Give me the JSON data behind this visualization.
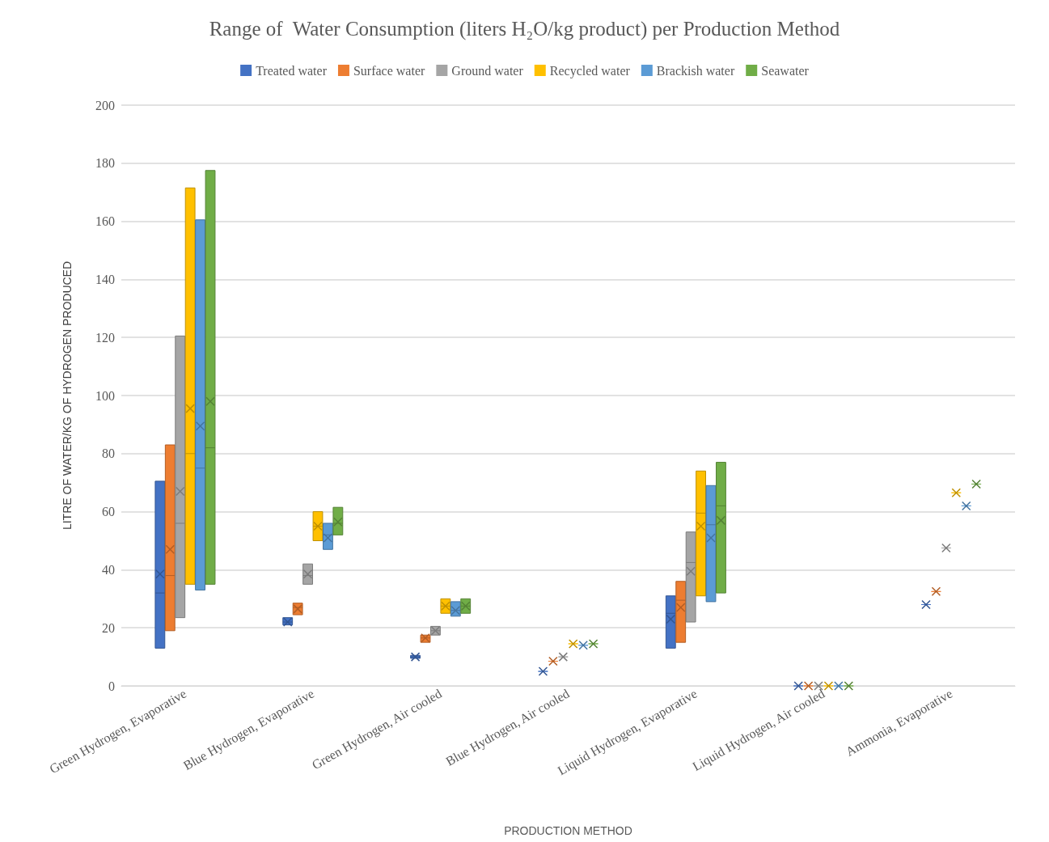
{
  "chart_data": {
    "type": "box",
    "title": "Range of  Water Consumption (liters H₂O/kg product) per Production Method",
    "xlabel": "PRODUCTION METHOD",
    "ylabel": "LITRE OF WATER/KG OF HYDROGEN PRODUCED",
    "categories": [
      "Green Hydrogen, Evaporative",
      "Blue Hydrogen, Evaporative",
      "Green Hydrogen, Air cooled",
      "Blue Hydrogen, Air cooled",
      "Liquid Hydrogen, Evaporative",
      "Liquid Hydrogen, Air cooled",
      "Ammonia, Evaporative"
    ],
    "series": [
      {
        "name": "Treated water",
        "color": "#4472c4",
        "boxes": [
          {
            "low": 13,
            "q1": 13,
            "median": 32,
            "q3": 70.5,
            "high": 70.5,
            "mean": 38.5
          },
          {
            "low": 21,
            "q1": 21,
            "median": 22,
            "q3": 23.5,
            "high": 23.5,
            "mean": 22
          },
          {
            "low": 9.5,
            "q1": 9.5,
            "median": 10,
            "q3": 10.5,
            "high": 10.5,
            "mean": 10
          },
          {
            "low": 5,
            "q1": 5,
            "median": 5,
            "q3": 5,
            "high": 5,
            "mean": 5
          },
          {
            "low": 13,
            "q1": 13,
            "median": 25,
            "q3": 31,
            "high": 31,
            "mean": 23
          },
          {
            "low": 0,
            "q1": 0,
            "median": 0,
            "q3": 0,
            "high": 0,
            "mean": 0
          },
          {
            "low": 28,
            "q1": 28,
            "median": 28,
            "q3": 28,
            "high": 28,
            "mean": 28
          }
        ]
      },
      {
        "name": "Surface water",
        "color": "#ed7d31",
        "boxes": [
          {
            "low": 19,
            "q1": 19,
            "median": 38,
            "q3": 83,
            "high": 83,
            "mean": 47
          },
          {
            "low": 24.5,
            "q1": 24.5,
            "median": 27,
            "q3": 28.5,
            "high": 28.5,
            "mean": 26.5
          },
          {
            "low": 15,
            "q1": 15,
            "median": 16.5,
            "q3": 17.5,
            "high": 17.5,
            "mean": 16.5
          },
          {
            "low": 8.5,
            "q1": 8.5,
            "median": 8.5,
            "q3": 8.5,
            "high": 8.5,
            "mean": 8.5
          },
          {
            "low": 15,
            "q1": 15,
            "median": 29.5,
            "q3": 36,
            "high": 36,
            "mean": 27
          },
          {
            "low": 0,
            "q1": 0,
            "median": 0,
            "q3": 0,
            "high": 0,
            "mean": 0
          },
          {
            "low": 32.5,
            "q1": 32.5,
            "median": 32.5,
            "q3": 32.5,
            "high": 32.5,
            "mean": 32.5
          }
        ]
      },
      {
        "name": "Ground water",
        "color": "#a5a5a5",
        "boxes": [
          {
            "low": 23.5,
            "q1": 23.5,
            "median": 56,
            "q3": 120.5,
            "high": 120.5,
            "mean": 67
          },
          {
            "low": 35,
            "q1": 35,
            "median": 38,
            "q3": 42,
            "high": 42,
            "mean": 38.5
          },
          {
            "low": 17.5,
            "q1": 17.5,
            "median": 19,
            "q3": 20.5,
            "high": 20.5,
            "mean": 19
          },
          {
            "low": 10,
            "q1": 10,
            "median": 10,
            "q3": 10,
            "high": 10,
            "mean": 10
          },
          {
            "low": 22,
            "q1": 22,
            "median": 42.5,
            "q3": 53,
            "high": 53,
            "mean": 39.5
          },
          {
            "low": 0,
            "q1": 0,
            "median": 0,
            "q3": 0,
            "high": 0,
            "mean": 0
          },
          {
            "low": 47.5,
            "q1": 47.5,
            "median": 47.5,
            "q3": 47.5,
            "high": 47.5,
            "mean": 47.5
          }
        ]
      },
      {
        "name": "Recycled water",
        "color": "#ffc000",
        "boxes": [
          {
            "low": 35,
            "q1": 35,
            "median": 80,
            "q3": 171.5,
            "high": 171.5,
            "mean": 95.5
          },
          {
            "low": 50,
            "q1": 50,
            "median": 55,
            "q3": 60,
            "high": 60,
            "mean": 55
          },
          {
            "low": 25,
            "q1": 25,
            "median": 27.5,
            "q3": 30,
            "high": 30,
            "mean": 27.5
          },
          {
            "low": 14.5,
            "q1": 14.5,
            "median": 14.5,
            "q3": 14.5,
            "high": 14.5,
            "mean": 14.5
          },
          {
            "low": 31,
            "q1": 31,
            "median": 59.5,
            "q3": 74,
            "high": 74,
            "mean": 55
          },
          {
            "low": 0,
            "q1": 0,
            "median": 0,
            "q3": 0,
            "high": 0,
            "mean": 0
          },
          {
            "low": 66.5,
            "q1": 66.5,
            "median": 66.5,
            "q3": 66.5,
            "high": 66.5,
            "mean": 66.5
          }
        ]
      },
      {
        "name": "Brackish water",
        "color": "#5b9bd5",
        "boxes": [
          {
            "low": 33,
            "q1": 33,
            "median": 75,
            "q3": 160.5,
            "high": 160.5,
            "mean": 89.5
          },
          {
            "low": 47,
            "q1": 47,
            "median": 52,
            "q3": 56,
            "high": 56,
            "mean": 51
          },
          {
            "low": 24,
            "q1": 24,
            "median": 26,
            "q3": 29,
            "high": 29,
            "mean": 26
          },
          {
            "low": 14,
            "q1": 14,
            "median": 14,
            "q3": 14,
            "high": 14,
            "mean": 14
          },
          {
            "low": 29,
            "q1": 29,
            "median": 55.5,
            "q3": 69,
            "high": 69,
            "mean": 51
          },
          {
            "low": 0,
            "q1": 0,
            "median": 0,
            "q3": 0,
            "high": 0,
            "mean": 0
          },
          {
            "low": 62,
            "q1": 62,
            "median": 62,
            "q3": 62,
            "high": 62,
            "mean": 62
          }
        ]
      },
      {
        "name": "Seawater",
        "color": "#70ad47",
        "boxes": [
          {
            "low": 35,
            "q1": 35,
            "median": 82,
            "q3": 177.5,
            "high": 177.5,
            "mean": 98
          },
          {
            "low": 52,
            "q1": 52,
            "median": 56,
            "q3": 61.5,
            "high": 61.5,
            "mean": 56.5
          },
          {
            "low": 25,
            "q1": 25,
            "median": 27.5,
            "q3": 30,
            "high": 30,
            "mean": 27.5
          },
          {
            "low": 14.5,
            "q1": 14.5,
            "median": 14.5,
            "q3": 14.5,
            "high": 14.5,
            "mean": 14.5
          },
          {
            "low": 32,
            "q1": 32,
            "median": 62,
            "q3": 77,
            "high": 77,
            "mean": 57
          },
          {
            "low": 0,
            "q1": 0,
            "median": 0,
            "q3": 0,
            "high": 0,
            "mean": 0
          },
          {
            "low": 69.5,
            "q1": 69.5,
            "median": 69.5,
            "q3": 69.5,
            "high": 69.5,
            "mean": 69.5
          }
        ]
      }
    ],
    "ylim": [
      0,
      200
    ],
    "yticks": [
      0,
      20,
      40,
      60,
      80,
      100,
      120,
      140,
      160,
      180,
      200
    ],
    "grid": "y",
    "legend": "top",
    "marker": "cross"
  }
}
